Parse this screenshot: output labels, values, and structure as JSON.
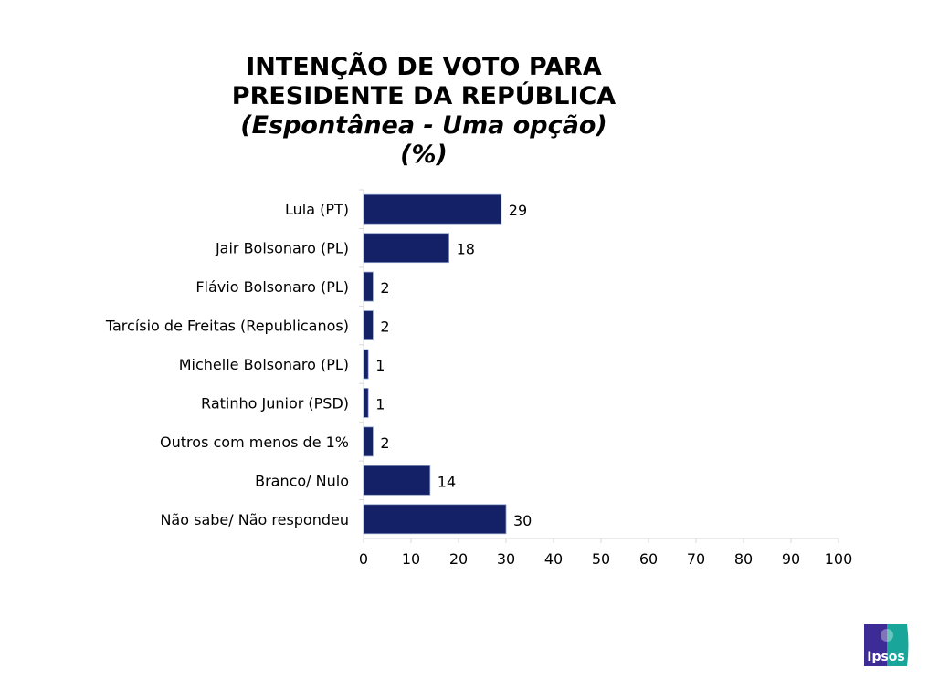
{
  "chart_data": {
    "type": "bar",
    "orientation": "horizontal",
    "title_lines": [
      "INTENÇÃO DE VOTO PARA",
      "PRESIDENTE DA REPÚBLICA"
    ],
    "subtitle": "(Espontânea - Uma opção)",
    "unit_label": "(%)",
    "categories": [
      "Lula (PT)",
      "Jair Bolsonaro (PL)",
      "Flávio Bolsonaro (PL)",
      "Tarcísio de Freitas (Republicanos)",
      "Michelle Bolsonaro (PL)",
      "Ratinho Junior (PSD)",
      "Outros com menos de 1%",
      "Branco/ Nulo",
      "Não sabe/ Não respondeu"
    ],
    "values": [
      29,
      18,
      2,
      2,
      1,
      1,
      2,
      14,
      30
    ],
    "xlim": [
      0,
      100
    ],
    "xticks": [
      0,
      10,
      20,
      30,
      40,
      50,
      60,
      70,
      80,
      90,
      100
    ],
    "grid": false,
    "bar_color": "#142166"
  },
  "logo": {
    "text": "Ipsos",
    "left_color": "#3d2c96",
    "right_color": "#1aa59a"
  }
}
